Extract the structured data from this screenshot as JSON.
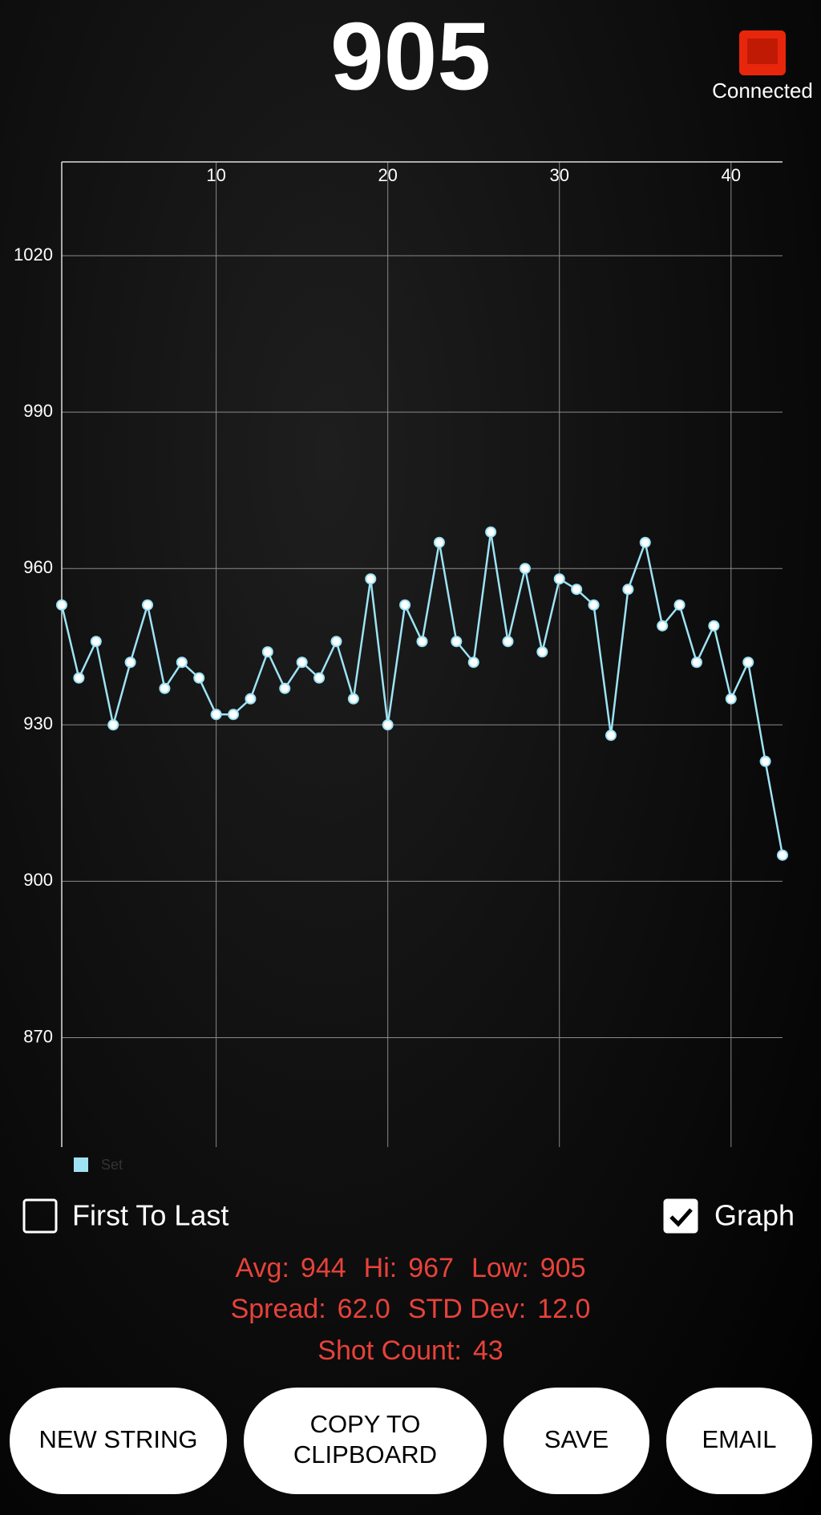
{
  "header": {
    "reading": "905",
    "status": "Connected"
  },
  "chart_data": {
    "type": "line",
    "x": [
      1,
      2,
      3,
      4,
      5,
      6,
      7,
      8,
      9,
      10,
      11,
      12,
      13,
      14,
      15,
      16,
      17,
      18,
      19,
      20,
      21,
      22,
      23,
      24,
      25,
      26,
      27,
      28,
      29,
      30,
      31,
      32,
      33,
      34,
      35,
      36,
      37,
      38,
      39,
      40,
      41,
      42,
      43
    ],
    "series": [
      {
        "name": "Set",
        "color": "#9ee3f5",
        "values": [
          953,
          939,
          946,
          930,
          942,
          953,
          937,
          942,
          939,
          932,
          932,
          935,
          944,
          937,
          942,
          939,
          946,
          935,
          958,
          930,
          953,
          946,
          965,
          946,
          942,
          967,
          946,
          960,
          944,
          958,
          956,
          953,
          928,
          956,
          965,
          949,
          953,
          942,
          949,
          935,
          942,
          923,
          905
        ]
      }
    ],
    "xlim": [
      1,
      43
    ],
    "xticks": [
      10,
      20,
      30,
      40
    ],
    "ylim": [
      849,
      1038
    ],
    "yticks": [
      870,
      900,
      930,
      960,
      990,
      1020
    ],
    "grid": true,
    "legend": "bottom-left"
  },
  "options": {
    "first_to_last": {
      "label": "First To Last",
      "checked": false
    },
    "graph": {
      "label": "Graph",
      "checked": true
    }
  },
  "stats": [
    [
      {
        "label": "Avg:",
        "value": "944"
      },
      {
        "label": "Hi:",
        "value": "967"
      },
      {
        "label": "Low:",
        "value": "905"
      }
    ],
    [
      {
        "label": "Spread:",
        "value": "62.0"
      },
      {
        "label": "STD Dev:",
        "value": "12.0"
      }
    ],
    [
      {
        "label": "Shot Count:",
        "value": "43"
      }
    ]
  ],
  "buttons": [
    "NEW STRING",
    "COPY TO|CLIPBOARD",
    "SAVE",
    "EMAIL"
  ]
}
